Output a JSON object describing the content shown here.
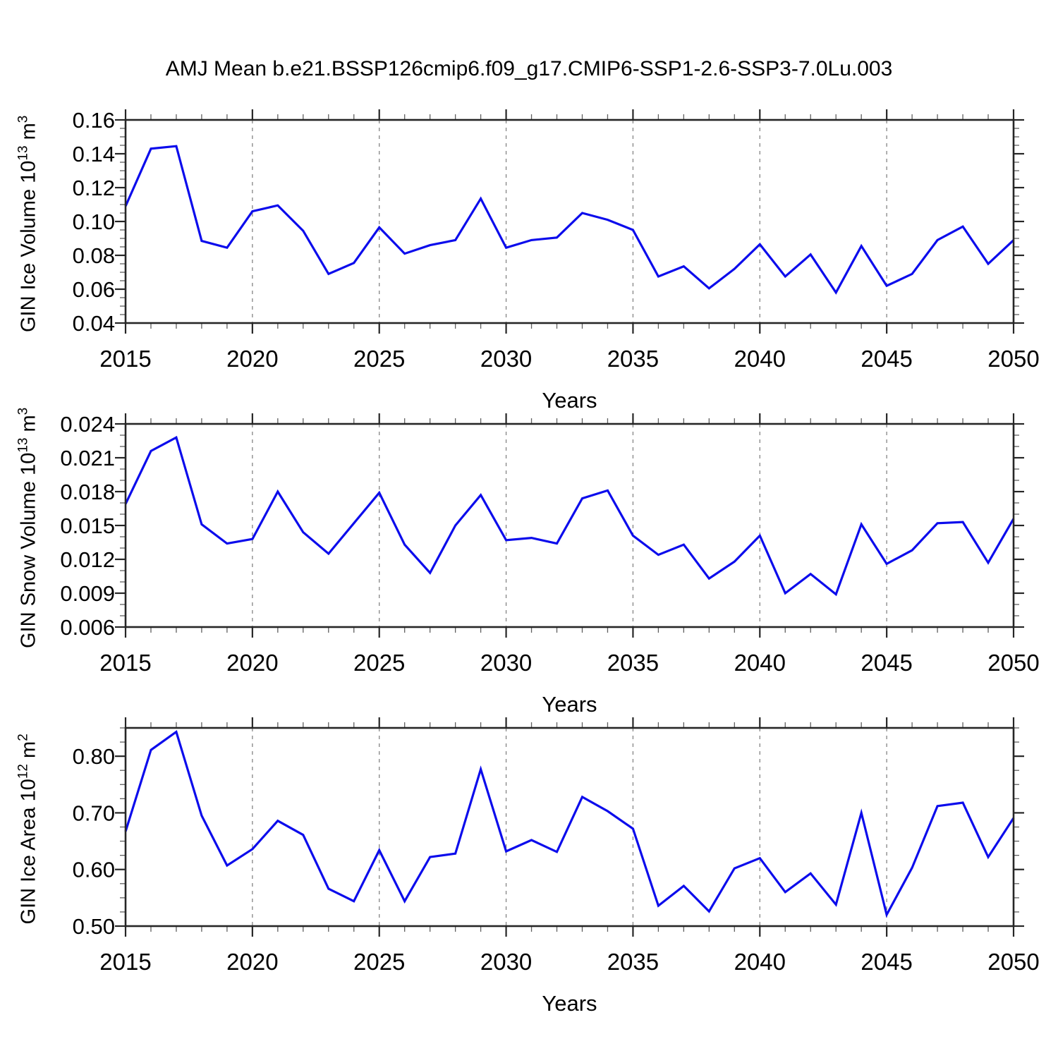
{
  "title": "AMJ Mean b.e21.BSSP126cmip6.f09_g17.CMIP6-SSP1-2.6-SSP3-7.0Lu.003",
  "style": {
    "line_color": "#0c0cec",
    "axis_color": "#262626",
    "minor_tick_color": "#606060",
    "grid_color": "#848484",
    "background": "#ffffff"
  },
  "x_axis": {
    "label": "Years",
    "range": [
      2015,
      2050
    ],
    "major_tick_step": 5,
    "minor_tick_step": 1,
    "major_tick_labels": [
      "2015",
      "2020",
      "2025",
      "2030",
      "2035",
      "2040",
      "2045",
      "2050"
    ],
    "gridlines_at": [
      2020,
      2025,
      2030,
      2035,
      2040,
      2045
    ]
  },
  "chart_data": [
    {
      "type": "line",
      "id": "gin-ice-volume",
      "ylabel": {
        "base": "GIN Ice Volume 10",
        "exp": "13",
        "unit": " m",
        "unit_exp": "3"
      },
      "xlabel": "Years",
      "xlim": [
        2015,
        2050
      ],
      "ylim": [
        0.04,
        0.16
      ],
      "y_major_tick_step": 0.02,
      "y_minor_tick_step": 0.005,
      "y_tick_labels": [
        "0.04",
        "0.06",
        "0.08",
        "0.10",
        "0.12",
        "0.14",
        "0.16"
      ],
      "grid": "vertical dashed at 5-year majors",
      "legend": "none",
      "x": [
        2015,
        2016,
        2017,
        2018,
        2019,
        2020,
        2021,
        2022,
        2023,
        2024,
        2025,
        2026,
        2027,
        2028,
        2029,
        2030,
        2031,
        2032,
        2033,
        2034,
        2035,
        2036,
        2037,
        2038,
        2039,
        2040,
        2041,
        2042,
        2043,
        2044,
        2045,
        2046,
        2047,
        2048,
        2049,
        2050
      ],
      "values": [
        0.109,
        0.143,
        0.1445,
        0.0885,
        0.0845,
        0.106,
        0.1095,
        0.0945,
        0.069,
        0.0755,
        0.0965,
        0.081,
        0.086,
        0.089,
        0.1135,
        0.0845,
        0.089,
        0.0905,
        0.105,
        0.101,
        0.095,
        0.0675,
        0.0735,
        0.0605,
        0.072,
        0.0865,
        0.0675,
        0.0805,
        0.058,
        0.0855,
        0.062,
        0.069,
        0.089,
        0.097,
        0.075,
        0.089
      ]
    },
    {
      "type": "line",
      "id": "gin-snow-volume",
      "ylabel": {
        "base": "GIN Snow Volume 10",
        "exp": "13",
        "unit": " m",
        "unit_exp": "3"
      },
      "xlabel": "Years",
      "xlim": [
        2015,
        2050
      ],
      "ylim": [
        0.006,
        0.024
      ],
      "y_major_tick_step": 0.003,
      "y_minor_tick_step": 0.001,
      "y_tick_labels": [
        "0.006",
        "0.009",
        "0.012",
        "0.015",
        "0.018",
        "0.021",
        "0.024"
      ],
      "grid": "vertical dashed at 5-year majors",
      "legend": "none",
      "x": [
        2015,
        2016,
        2017,
        2018,
        2019,
        2020,
        2021,
        2022,
        2023,
        2024,
        2025,
        2026,
        2027,
        2028,
        2029,
        2030,
        2031,
        2032,
        2033,
        2034,
        2035,
        2036,
        2037,
        2038,
        2039,
        2040,
        2041,
        2042,
        2043,
        2044,
        2045,
        2046,
        2047,
        2048,
        2049,
        2050
      ],
      "values": [
        0.0169,
        0.0216,
        0.0228,
        0.0151,
        0.0134,
        0.0138,
        0.018,
        0.0144,
        0.0125,
        0.0152,
        0.0179,
        0.0133,
        0.0108,
        0.015,
        0.0177,
        0.0137,
        0.0139,
        0.0134,
        0.0174,
        0.0181,
        0.0141,
        0.0124,
        0.0133,
        0.0103,
        0.0118,
        0.0141,
        0.009,
        0.0107,
        0.0089,
        0.0151,
        0.0116,
        0.0128,
        0.0152,
        0.0153,
        0.0117,
        0.0156
      ]
    },
    {
      "type": "line",
      "id": "gin-ice-area",
      "ylabel": {
        "base": "GIN Ice Area 10",
        "exp": "12",
        "unit": " m",
        "unit_exp": "2"
      },
      "xlabel": "Years",
      "xlim": [
        2015,
        2050
      ],
      "ylim": [
        0.5,
        0.85
      ],
      "y_major_tick_step": 0.1,
      "y_minor_tick_step": 0.025,
      "y_tick_labels": [
        "0.50",
        "0.60",
        "0.70",
        "0.80"
      ],
      "grid": "vertical dashed at 5-year majors",
      "legend": "none",
      "x": [
        2015,
        2016,
        2017,
        2018,
        2019,
        2020,
        2021,
        2022,
        2023,
        2024,
        2025,
        2026,
        2027,
        2028,
        2029,
        2030,
        2031,
        2032,
        2033,
        2034,
        2035,
        2036,
        2037,
        2038,
        2039,
        2040,
        2041,
        2042,
        2043,
        2044,
        2045,
        2046,
        2047,
        2048,
        2049,
        2050
      ],
      "values": [
        0.667,
        0.811,
        0.843,
        0.695,
        0.607,
        0.636,
        0.686,
        0.661,
        0.566,
        0.544,
        0.634,
        0.544,
        0.622,
        0.628,
        0.777,
        0.632,
        0.652,
        0.631,
        0.728,
        0.703,
        0.672,
        0.536,
        0.571,
        0.526,
        0.602,
        0.62,
        0.56,
        0.593,
        0.538,
        0.7,
        0.52,
        0.603,
        0.712,
        0.718,
        0.622,
        0.691
      ]
    }
  ]
}
